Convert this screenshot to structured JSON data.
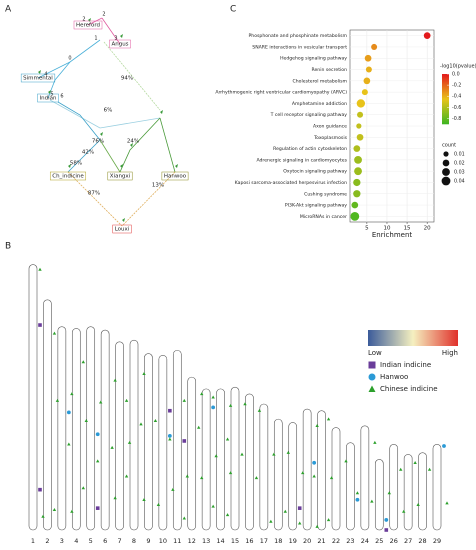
{
  "panel_labels": [
    "A",
    "B",
    "C"
  ],
  "tree": {
    "nodes": [
      "Hereford",
      "Angus",
      "Simmental",
      "Indian",
      "Ch_indicine",
      "Xiangxi",
      "Hanwoo",
      "Louxi"
    ],
    "node_numbers": [
      "2",
      "2",
      "1",
      "3",
      "0",
      "4",
      "5",
      "6"
    ],
    "edge_labels": [
      "94%",
      "6%",
      "76%",
      "42%",
      "24%",
      "58%",
      "13%",
      "87%"
    ]
  },
  "ideogram": {
    "chromosomes": [
      "1",
      "2",
      "3",
      "4",
      "5",
      "6",
      "7",
      "8",
      "9",
      "10",
      "11",
      "12",
      "13",
      "14",
      "15",
      "16",
      "17",
      "18",
      "19",
      "20",
      "21",
      "22",
      "23",
      "24",
      "25",
      "26",
      "27",
      "28",
      "29"
    ],
    "lengths": [
      158,
      137,
      121,
      120,
      121,
      119,
      112,
      113,
      105,
      104,
      107,
      91,
      84,
      84,
      85,
      81,
      75,
      66,
      64,
      72,
      71,
      61,
      52,
      62,
      42,
      51,
      45,
      46,
      51
    ],
    "scale_low": "Low",
    "scale_high": "High",
    "series": [
      {
        "name": "Indian indicine",
        "color": "#6a3d9a",
        "marker": "square",
        "chromosomes": [
          1,
          1,
          5,
          10,
          11,
          19,
          25
        ],
        "positions": [
          36,
          134,
          108,
          33,
          54,
          51,
          42
        ]
      },
      {
        "name": "Hanwoo",
        "color": "#2b9ad6",
        "marker": "circle",
        "chromosomes": [
          3,
          5,
          10,
          13,
          20,
          23,
          25,
          29
        ],
        "positions": [
          51,
          64,
          48,
          11,
          32,
          34,
          36,
          1
        ]
      },
      {
        "name": "Chinese indicine",
        "color": "#2ca02c",
        "marker": "triangle",
        "chromosomes": [
          1,
          1,
          2,
          2,
          2,
          3,
          3,
          3,
          4,
          4,
          4,
          5,
          5,
          6,
          6,
          6,
          7,
          7,
          7,
          8,
          8,
          8,
          9,
          9,
          10,
          10,
          11,
          11,
          11,
          12,
          12,
          12,
          13,
          13,
          13,
          14,
          14,
          14,
          14,
          15,
          15,
          16,
          16,
          17,
          17,
          18,
          18,
          19,
          19,
          20,
          20,
          20,
          21,
          21,
          21,
          22,
          23,
          24,
          24,
          25,
          26,
          26,
          27,
          27,
          28,
          29
        ],
        "positions": [
          3,
          150,
          20,
          60,
          125,
          40,
          70,
          110,
          20,
          55,
          95,
          45,
          80,
          30,
          70,
          100,
          35,
          60,
          80,
          20,
          50,
          95,
          40,
          90,
          50,
          80,
          30,
          75,
          100,
          10,
          30,
          60,
          5,
          40,
          70,
          10,
          30,
          50,
          75,
          10,
          40,
          10,
          50,
          30,
          70,
          20,
          55,
          30,
          60,
          10,
          40,
          70,
          5,
          40,
          65,
          20,
          30,
          10,
          45,
          20,
          15,
          40,
          5,
          30,
          10,
          35
        ]
      }
    ]
  },
  "chart_data": {
    "type": "dotplot",
    "xlabel": "Enrichment",
    "categories": [
      "Phosphonate and phosphinate metabolism",
      "SNARE interactions in vesicular transport",
      "Hedgehog signaling pathway",
      "Renin secretion",
      "Cholesterol metabolism",
      "Arrhythmogenic right ventricular cardiomyopathy (ARVC)",
      "Amphetamine addiction",
      "T cell receptor signaling pathway",
      "Axon guidance",
      "Toxoplasmosis",
      "Regulation of actin cytoskeleton",
      "Adrenergic signaling in cardiomyocytes",
      "Oxytocin signaling pathway",
      "Kaposi sarcoma-associated herpesvirus infection",
      "Cushing syndrome",
      "PI3K-Akt signaling pathway",
      "MicroRNAs in cancer"
    ],
    "values": [
      20,
      6.8,
      5.3,
      5.5,
      5,
      4.5,
      3.5,
      3.3,
      3,
      3.3,
      2.5,
      2.8,
      2.8,
      2.5,
      2.5,
      2,
      2
    ],
    "color_values": [
      0,
      -0.3,
      -0.35,
      -0.4,
      -0.4,
      -0.45,
      -0.45,
      -0.55,
      -0.55,
      -0.55,
      -0.6,
      -0.65,
      -0.65,
      -0.7,
      -0.7,
      -0.8,
      -0.85
    ],
    "counts": [
      0.02,
      0.015,
      0.02,
      0.015,
      0.02,
      0.015,
      0.035,
      0.015,
      0.01,
      0.02,
      0.02,
      0.03,
      0.03,
      0.025,
      0.025,
      0.02,
      0.04
    ],
    "xlim": [
      0.8,
      21.7
    ],
    "xticks": [
      5,
      10,
      15,
      20
    ],
    "color_title": "-log10(pvalue)",
    "clim": [
      -0.9,
      0
    ],
    "color_ticks": [
      {
        "value": 0,
        "label": "0.0"
      },
      -0.2,
      -0.4,
      -0.6,
      -0.8
    ],
    "colors": [
      "#3cb521",
      "#e8c31a",
      "#e31a1c"
    ],
    "size_title": "count",
    "size_ticks": [
      0.01,
      0.02,
      0.03,
      0.04
    ]
  }
}
